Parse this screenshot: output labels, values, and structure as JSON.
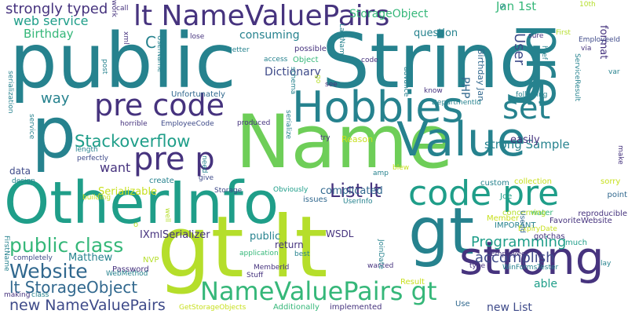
{
  "palette": {
    "purple": "#46337e",
    "indigo": "#3e4a89",
    "blue": "#31688e",
    "teal": "#26828e",
    "green": "#1f9e89",
    "emerald": "#35b779",
    "lime": "#6ece58",
    "yellow": "#b5de2b",
    "gold": "#c8e020"
  },
  "words": [
    {
      "text": "public",
      "color": "teal"
    },
    {
      "text": "String",
      "color": "teal"
    },
    {
      "text": "Name",
      "color": "lime"
    },
    {
      "text": "OtherInfo",
      "color": "green"
    },
    {
      "text": "gt lt",
      "color": "yellow"
    },
    {
      "text": "gt",
      "color": "teal"
    },
    {
      "text": "p",
      "color": "teal"
    },
    {
      "text": "Value",
      "color": "teal"
    },
    {
      "text": "pre",
      "color": "teal"
    },
    {
      "text": "strong",
      "color": "purple"
    },
    {
      "text": "Hobbies",
      "color": "teal"
    },
    {
      "text": "pre code",
      "color": "purple"
    },
    {
      "text": "lt NameValuePairs",
      "color": "purple"
    },
    {
      "text": "code pre",
      "color": "green"
    },
    {
      "text": "pre p",
      "color": "purple"
    },
    {
      "text": "set",
      "color": "teal"
    },
    {
      "text": "NameValuePairs gt",
      "color": "emerald"
    },
    {
      "text": "public class",
      "color": "emerald"
    },
    {
      "text": "Website",
      "color": "blue"
    },
    {
      "text": "List lt",
      "color": "purple"
    },
    {
      "text": "Stackoverflow",
      "color": "green"
    },
    {
      "text": "new NameValuePairs",
      "color": "indigo"
    },
    {
      "text": "lt StorageObject",
      "color": "blue"
    },
    {
      "text": "Programming",
      "color": "green"
    },
    {
      "text": "accomplish",
      "color": "indigo"
    },
    {
      "text": "strongly typed",
      "color": "purple"
    },
    {
      "text": "web service",
      "color": "green"
    },
    {
      "text": "Birthday",
      "color": "emerald"
    },
    {
      "text": "way",
      "color": "teal"
    },
    {
      "text": "want",
      "color": "purple"
    },
    {
      "text": "C",
      "color": "teal"
    },
    {
      "text": "consuming",
      "color": "teal"
    },
    {
      "text": "StorageObject",
      "color": "emerald"
    },
    {
      "text": "Dictionary",
      "color": "indigo"
    },
    {
      "text": "question",
      "color": "teal"
    },
    {
      "text": "User",
      "color": "indigo"
    },
    {
      "text": "PHP",
      "color": "blue"
    },
    {
      "text": "Birthday Jan",
      "color": "blue"
    },
    {
      "text": "Jan 1st",
      "color": "emerald"
    },
    {
      "text": "10th",
      "color": "yellow"
    },
    {
      "text": "format",
      "color": "purple"
    },
    {
      "text": "strong Sample",
      "color": "teal"
    },
    {
      "text": "easily",
      "color": "purple"
    },
    {
      "text": "complicated",
      "color": "blue"
    },
    {
      "text": "IXmlSerializer",
      "color": "purple"
    },
    {
      "text": "WSDL",
      "color": "purple"
    },
    {
      "text": "public",
      "color": "teal"
    },
    {
      "text": "Matthew",
      "color": "teal"
    },
    {
      "text": "return",
      "color": "purple"
    },
    {
      "text": "new List",
      "color": "indigo"
    },
    {
      "text": "able",
      "color": "green"
    },
    {
      "text": "Serializable",
      "color": "gold"
    },
    {
      "text": "Unfortunately",
      "color": "blue"
    },
    {
      "text": "horrible",
      "color": "purple"
    },
    {
      "text": "EmployeeCode",
      "color": "indigo"
    },
    {
      "text": "produced",
      "color": "purple"
    },
    {
      "text": "try",
      "color": "purple"
    },
    {
      "text": "Reason",
      "color": "gold"
    },
    {
      "text": "data",
      "color": "indigo"
    },
    {
      "text": "building",
      "color": "gold"
    },
    {
      "text": "perfectly",
      "color": "indigo"
    },
    {
      "text": "length",
      "color": "teal"
    },
    {
      "text": "create",
      "color": "teal"
    },
    {
      "text": "give",
      "color": "indigo"
    },
    {
      "text": "Storage",
      "color": "indigo"
    },
    {
      "text": "Obviously",
      "color": "green"
    },
    {
      "text": "UserInfo",
      "color": "teal"
    },
    {
      "text": "issues",
      "color": "blue"
    },
    {
      "text": "custom",
      "color": "teal"
    },
    {
      "text": "collection",
      "color": "gold"
    },
    {
      "text": "Joe",
      "color": "green"
    },
    {
      "text": "sorry",
      "color": "gold"
    },
    {
      "text": "point",
      "color": "blue"
    },
    {
      "text": "reproducible",
      "color": "purple"
    },
    {
      "text": "water",
      "color": "emerald"
    },
    {
      "text": "concerning",
      "color": "yellow"
    },
    {
      "text": "Member",
      "color": "gold"
    },
    {
      "text": "IMPORANT",
      "color": "teal"
    },
    {
      "text": "FavoriteWebsite",
      "color": "purple"
    },
    {
      "text": "gotchas",
      "color": "purple"
    },
    {
      "text": "much",
      "color": "green"
    },
    {
      "text": "Employee",
      "color": "purple"
    },
    {
      "text": "ExpiryDate",
      "color": "gold"
    },
    {
      "text": "UserId",
      "color": "blue"
    },
    {
      "text": "Password",
      "color": "purple"
    },
    {
      "text": "NVP",
      "color": "yellow"
    },
    {
      "text": "WebMethod",
      "color": "teal"
    },
    {
      "text": "MemberId",
      "color": "purple"
    },
    {
      "text": "Stuff",
      "color": "purple"
    },
    {
      "text": "application",
      "color": "emerald"
    },
    {
      "text": "best",
      "color": "teal"
    },
    {
      "text": "wanted",
      "color": "purple"
    },
    {
      "text": "Result",
      "color": "gold"
    },
    {
      "text": "type",
      "color": "purple"
    },
    {
      "text": "WinFormsTester",
      "color": "teal"
    },
    {
      "text": "lay",
      "color": "teal"
    },
    {
      "text": "completely",
      "color": "indigo"
    },
    {
      "text": "making",
      "color": "purple"
    },
    {
      "text": "class",
      "color": "teal"
    },
    {
      "text": "Additionally",
      "color": "emerald"
    },
    {
      "text": "implemented",
      "color": "purple"
    },
    {
      "text": "GetStorageObjects",
      "color": "gold"
    },
    {
      "text": "Use",
      "color": "blue"
    },
    {
      "text": "JoinDate",
      "color": "teal"
    },
    {
      "text": "FirstName",
      "color": "teal"
    },
    {
      "text": "design",
      "color": "teal"
    },
    {
      "text": "serialization",
      "color": "teal"
    },
    {
      "text": "service",
      "color": "teal"
    },
    {
      "text": "well",
      "color": "yellow"
    },
    {
      "text": "need",
      "color": "teal"
    },
    {
      "text": "blew",
      "color": "gold"
    },
    {
      "text": "amp",
      "color": "teal"
    },
    {
      "text": "xml",
      "color": "purple"
    },
    {
      "text": "call",
      "color": "purple"
    },
    {
      "text": "work",
      "color": "purple"
    },
    {
      "text": "post",
      "color": "teal"
    },
    {
      "text": "UserName",
      "color": "teal"
    },
    {
      "text": "lose",
      "color": "purple"
    },
    {
      "text": "better",
      "color": "teal"
    },
    {
      "text": "access",
      "color": "teal"
    },
    {
      "text": "Object",
      "color": "emerald"
    },
    {
      "text": "possible",
      "color": "purple"
    },
    {
      "text": "LastName",
      "color": "teal"
    },
    {
      "text": "schema",
      "color": "teal"
    },
    {
      "text": "go",
      "color": "yellow"
    },
    {
      "text": "see",
      "color": "purple"
    },
    {
      "text": "code",
      "color": "purple"
    },
    {
      "text": "advance",
      "color": "teal"
    },
    {
      "text": "know",
      "color": "purple"
    },
    {
      "text": "DepartmentId",
      "color": "teal"
    },
    {
      "text": "serialize",
      "color": "teal"
    },
    {
      "text": "First",
      "color": "yellow"
    },
    {
      "text": "EmployeeId",
      "color": "indigo"
    },
    {
      "text": "sure",
      "color": "purple"
    },
    {
      "text": "href",
      "color": "teal"
    },
    {
      "text": "ServiceResult",
      "color": "teal"
    },
    {
      "text": "following",
      "color": "teal"
    },
    {
      "text": "via",
      "color": "purple"
    },
    {
      "text": "var",
      "color": "teal"
    },
    {
      "text": "make",
      "color": "purple"
    },
    {
      "text": "o",
      "color": "yellow"
    },
    {
      "text": "S",
      "color": "teal"
    }
  ]
}
